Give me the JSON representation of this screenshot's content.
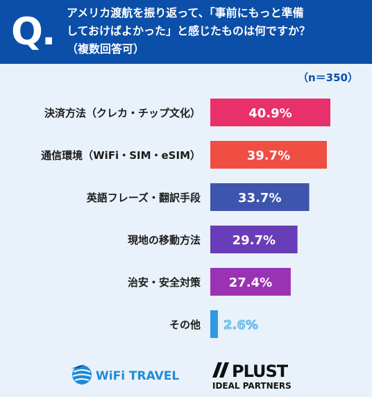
{
  "header": {
    "q_label": "Q.",
    "question_lines": [
      "アメリカ渡航を振り返って、「事前にもっと準備",
      "しておけばよかった」と感じたものは何ですか？",
      "（複数回答可）"
    ]
  },
  "sample_size": "（n＝350）",
  "chart_data": {
    "type": "bar",
    "orientation": "horizontal",
    "title": "アメリカ渡航を振り返って、「事前にもっと準備しておけばよかった」と感じたものは何ですか？（複数回答可）",
    "categories": [
      "決済方法（クレカ・チップ文化）",
      "通信環境（WiFi・SIM・eSIM）",
      "英語フレーズ・翻訳手段",
      "現地の移動方法",
      "治安・安全対策",
      "その他"
    ],
    "values": [
      40.9,
      39.7,
      33.7,
      29.7,
      27.4,
      2.6
    ],
    "value_labels": [
      "40.9%",
      "39.7%",
      "33.7%",
      "29.7%",
      "27.4%",
      "2.6%"
    ],
    "bar_colors": [
      "#e8316a",
      "#f04d43",
      "#3e55ad",
      "#6a3db8",
      "#9a32b4",
      "#2f9ae0"
    ],
    "unit": "%",
    "n": 350,
    "grid": false,
    "legend": "none"
  },
  "footer": {
    "logo_left": "WiFi TRAVEL",
    "logo_right_main": "PLUST",
    "logo_right_sub": "IDEAL PARTNERS"
  }
}
